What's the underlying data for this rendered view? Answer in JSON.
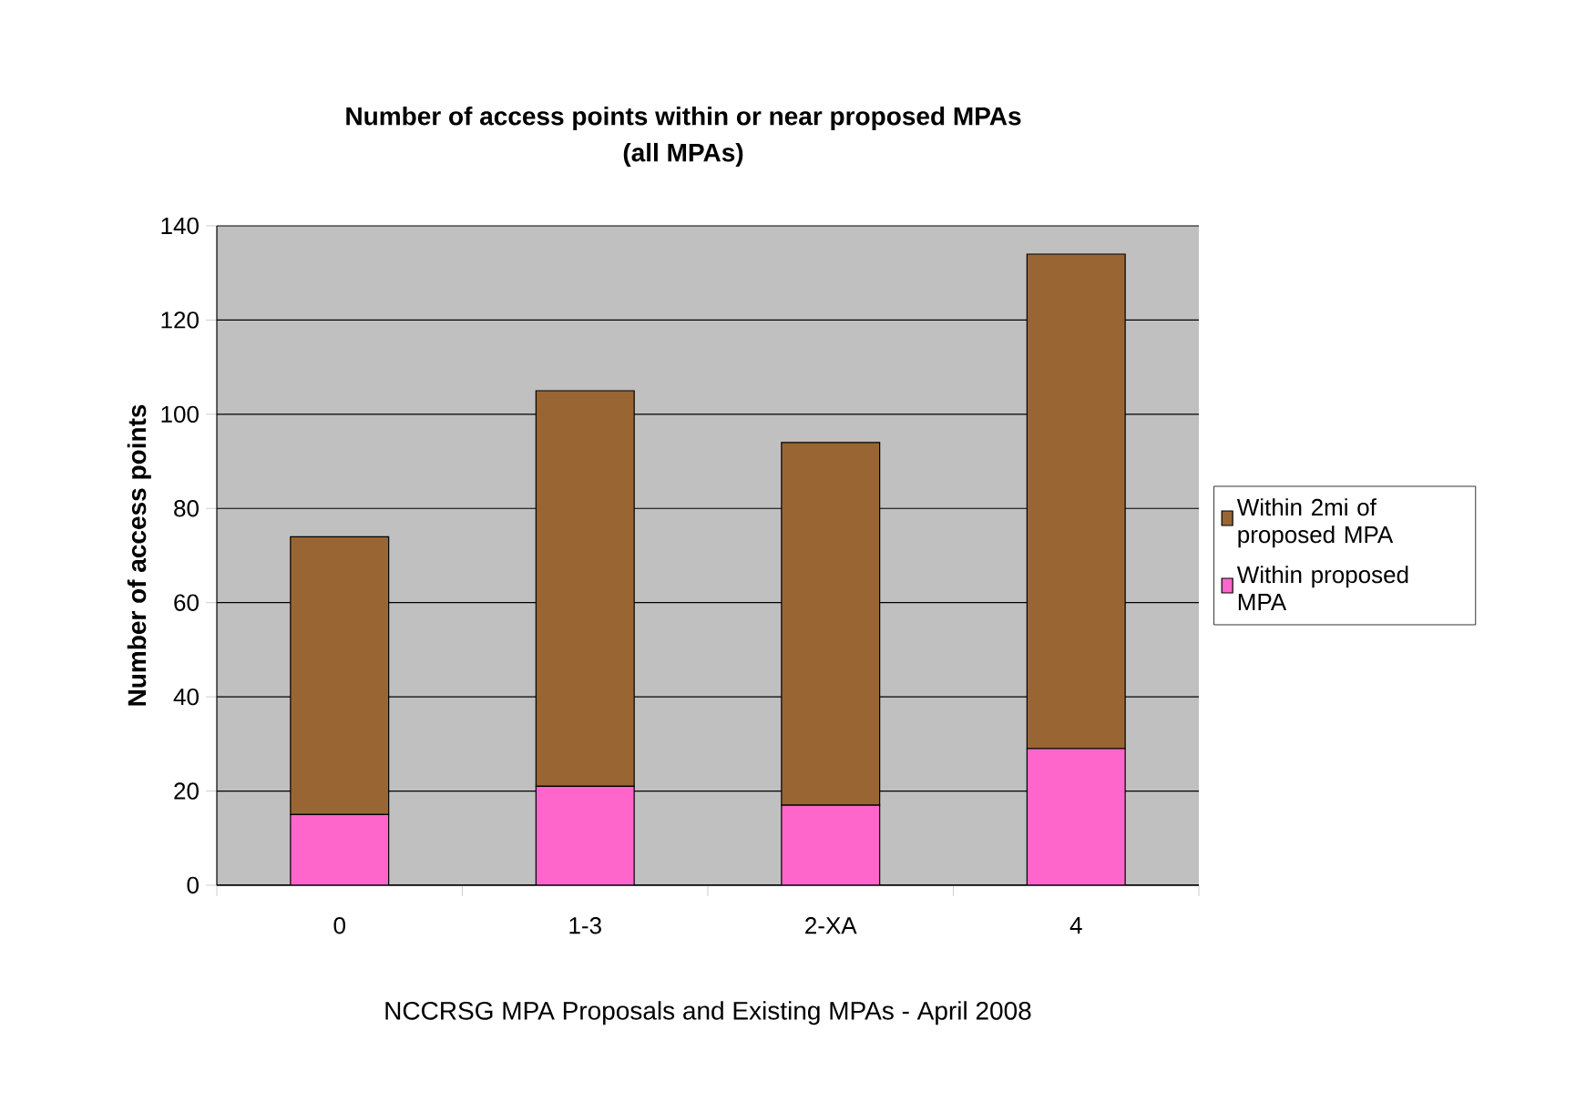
{
  "chart_data": {
    "type": "bar",
    "stacked": true,
    "title": "Number of access points within or near proposed MPAs",
    "subtitle": "(all MPAs)",
    "ylabel": "Number of access points",
    "xlabel": "NCCRSG MPA Proposals and Existing MPAs - April 2008",
    "categories": [
      "0",
      "1-3",
      "2-XA",
      "4"
    ],
    "series": [
      {
        "name": "Within proposed MPA",
        "color": "#ff66cc",
        "values": [
          15,
          21,
          17,
          29
        ]
      },
      {
        "name": "Within 2mi of proposed MPA",
        "color": "#996633",
        "values": [
          59,
          84,
          77,
          105
        ]
      }
    ],
    "ylim": [
      0,
      140
    ],
    "yticks": [
      0,
      20,
      40,
      60,
      80,
      100,
      120,
      140
    ],
    "grid": "y",
    "legend": "right"
  }
}
